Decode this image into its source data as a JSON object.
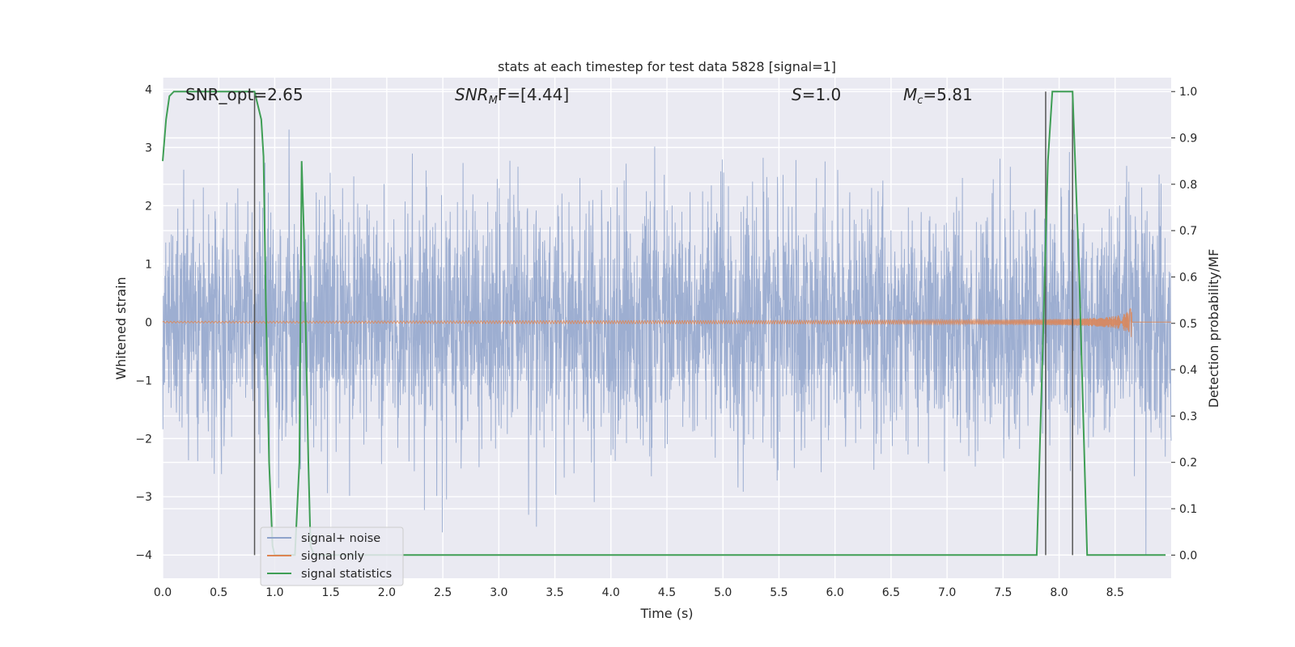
{
  "chart_data": {
    "type": "line",
    "title": "stats at each timestep for test data 5828 [signal=1]",
    "xlabel": "Time (s)",
    "ylabel_left": "Whitened strain",
    "ylabel_right": "Detection probability/MF",
    "xlim": [
      0.0,
      9.0
    ],
    "ylim_left": [
      -4.4,
      4.2
    ],
    "ylim_right": [
      -0.05,
      1.03
    ],
    "x_ticks": [
      "0.0",
      "0.5",
      "1.0",
      "1.5",
      "2.0",
      "2.5",
      "3.0",
      "3.5",
      "4.0",
      "4.5",
      "5.0",
      "5.5",
      "6.0",
      "6.5",
      "7.0",
      "7.5",
      "8.0",
      "8.5"
    ],
    "y_ticks_left": [
      "4",
      "3",
      "2",
      "1",
      "0",
      "−1",
      "−2",
      "−3",
      "−4"
    ],
    "y_ticks_right": [
      "1.0",
      "0.9",
      "0.8",
      "0.7",
      "0.6",
      "0.5",
      "0.4",
      "0.3",
      "0.2",
      "0.1",
      "0.0"
    ],
    "grid": true,
    "legend_position": "lower-left",
    "annotations": [
      {
        "id": "snr_opt",
        "text": "SNR_opt=2.65",
        "x": 0.19
      },
      {
        "id": "snr_mf",
        "parts": [
          "SNR",
          "M",
          "F=[4.44]"
        ],
        "x": 2.6
      },
      {
        "id": "s",
        "parts": [
          "S",
          "=1.0"
        ],
        "x": 5.6
      },
      {
        "id": "mc",
        "parts": [
          "M",
          "c",
          "=5.81"
        ],
        "x": 6.6
      }
    ],
    "series": [
      {
        "name": "signal+ noise",
        "color": "#8fa3cb",
        "description_amplitude": 4.0
      },
      {
        "name": "signal only",
        "color": "#dd8452",
        "chirp_end_time": 8.65,
        "chirp_max_amplitude": 0.28
      },
      {
        "name": "signal statistics",
        "color": "#3f9e55",
        "x": [
          0.0,
          0.03,
          0.06,
          0.1,
          0.2,
          0.8,
          0.82,
          0.88,
          0.9,
          0.92,
          0.95,
          0.98,
          1.0,
          1.1,
          1.18,
          1.22,
          1.24,
          1.26,
          1.3,
          1.32,
          1.35,
          2.0,
          3.0,
          5.0,
          7.0,
          7.8,
          7.86,
          7.9,
          7.94,
          8.0,
          8.1,
          8.12,
          8.18,
          8.25,
          8.5,
          8.95
        ],
        "values": [
          0.85,
          0.94,
          0.99,
          1.0,
          1.0,
          1.0,
          1.0,
          0.94,
          0.86,
          0.55,
          0.2,
          0.02,
          0.0,
          0.0,
          0.0,
          0.2,
          0.85,
          0.7,
          0.2,
          0.02,
          0.0,
          0.0,
          0.0,
          0.0,
          0.0,
          0.0,
          0.5,
          0.85,
          1.0,
          1.0,
          1.0,
          1.0,
          0.6,
          0.0,
          0.0,
          0.0
        ]
      }
    ],
    "vertical_lines_x": [
      0.82,
      7.88,
      8.12
    ]
  }
}
